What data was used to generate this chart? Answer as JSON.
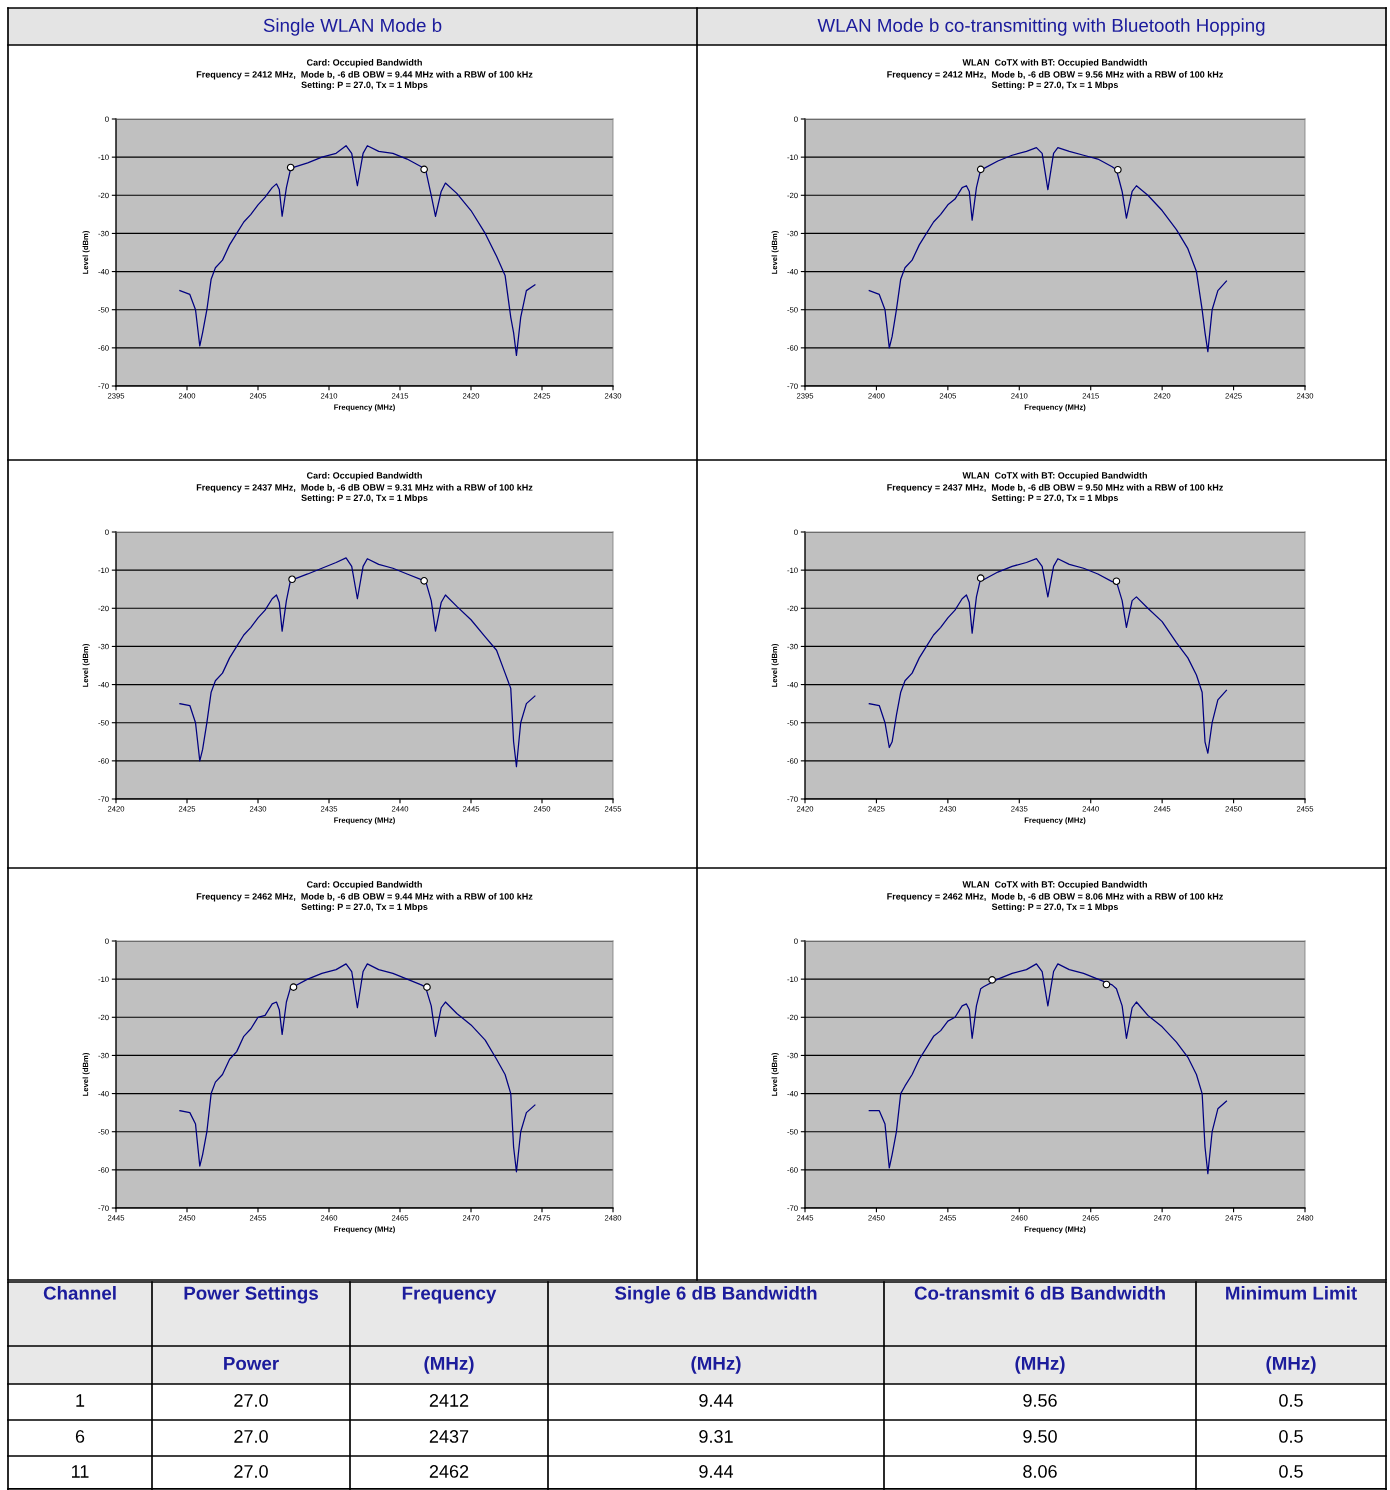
{
  "chart_data": [
    {
      "type": "line",
      "title": "Card: Occupied Bandwidth",
      "subtitle": "Frequency = 2412 MHz,  Mode b, -6 dB OBW = 9.44 MHz with a RBW of 100 kHz\nSetting: P = 27.0, Tx = 1 Mbps",
      "xlabel": "Frequency (MHz)",
      "ylabel": "Level (dBm)",
      "annotations": [
        "Single WLAN Mode b"
      ],
      "xlim": [
        2395,
        2430
      ],
      "xticks": [
        2395,
        2400,
        2405,
        2410,
        2415,
        2420,
        2425,
        2430
      ],
      "ylim": [
        -70,
        0
      ],
      "yticks": [
        -70,
        -60,
        -50,
        -40,
        -30,
        -20,
        -10,
        0
      ],
      "grid": "y",
      "series": [
        {
          "type": "line",
          "color": "#000080",
          "x": [
            2399.5,
            2400.2,
            2400.6,
            2400.9,
            2401.1,
            2401.4,
            2401.7,
            2402.0,
            2402.5,
            2403.0,
            2403.5,
            2404.0,
            2404.5,
            2405.0,
            2405.5,
            2406.0,
            2406.3,
            2406.5,
            2406.7,
            2407.0,
            2407.3,
            2407.5,
            2408.5,
            2409.5,
            2410.5,
            2411.2,
            2411.6,
            2412.0,
            2412.4,
            2412.7,
            2413.5,
            2414.5,
            2415.5,
            2416.5,
            2416.8,
            2417.2,
            2417.5,
            2417.9,
            2418.2,
            2419.0,
            2420.0,
            2421.0,
            2421.8,
            2422.4,
            2422.8,
            2423.0,
            2423.2,
            2423.5,
            2423.9,
            2424.5
          ],
          "values": [
            -45,
            -46,
            -50,
            -59.5,
            -56,
            -50,
            -42,
            -39,
            -37,
            -33,
            -30,
            -27,
            -25,
            -22.5,
            -20.5,
            -18,
            -17,
            -18.5,
            -25.5,
            -18,
            -13,
            -12.7,
            -11.5,
            -10,
            -9,
            -7,
            -9,
            -17.5,
            -9,
            -7,
            -8.5,
            -9,
            -10.5,
            -12.5,
            -13.2,
            -20,
            -25.5,
            -19,
            -16.8,
            -19.5,
            -24,
            -30,
            -36,
            -41,
            -52,
            -56,
            -62,
            -52,
            -45,
            -43.5
          ]
        },
        {
          "type": "scatter",
          "marker": "circle",
          "color": "#ffffff",
          "x": [
            2407.3,
            2416.7
          ],
          "values": [
            -12.7,
            -13.2
          ]
        }
      ]
    },
    {
      "type": "line",
      "title": "WLAN  CoTX with BT: Occupied Bandwidth",
      "subtitle": "Frequency = 2412 MHz,  Mode b, -6 dB OBW = 9.56 MHz with a RBW of 100 kHz\nSetting: P = 27.0, Tx = 1 Mbps",
      "xlabel": "Frequency (MHz)",
      "ylabel": "Level (dBm)",
      "annotations": [
        "WLAN Mode b co-transmitting with Bluetooth Hopping"
      ],
      "xlim": [
        2395,
        2430
      ],
      "xticks": [
        2395,
        2400,
        2405,
        2410,
        2415,
        2420,
        2425,
        2430
      ],
      "ylim": [
        -70,
        0
      ],
      "yticks": [
        -70,
        -60,
        -50,
        -40,
        -30,
        -20,
        -10,
        0
      ],
      "grid": "y",
      "series": [
        {
          "type": "line",
          "color": "#000080",
          "x": [
            2399.5,
            2400.2,
            2400.6,
            2400.9,
            2401.1,
            2401.4,
            2401.7,
            2402.0,
            2402.5,
            2403.0,
            2403.5,
            2404.0,
            2404.5,
            2405.0,
            2405.5,
            2406.0,
            2406.3,
            2406.5,
            2406.7,
            2407.0,
            2407.3,
            2407.5,
            2408.5,
            2409.5,
            2410.5,
            2411.2,
            2411.6,
            2412.0,
            2412.4,
            2412.7,
            2413.5,
            2414.5,
            2415.5,
            2416.5,
            2416.8,
            2417.2,
            2417.5,
            2417.9,
            2418.2,
            2419.0,
            2420.0,
            2421.0,
            2421.8,
            2422.4,
            2422.8,
            2423.0,
            2423.2,
            2423.5,
            2423.9,
            2424.5
          ],
          "values": [
            -45,
            -46,
            -50,
            -60,
            -57,
            -50,
            -42,
            -39,
            -37,
            -33,
            -30,
            -27,
            -25,
            -22.5,
            -21,
            -18,
            -17.5,
            -19,
            -26.5,
            -18,
            -13.2,
            -13,
            -11,
            -9.5,
            -8.5,
            -7.5,
            -9,
            -18.5,
            -9,
            -7.5,
            -8.5,
            -9.5,
            -10.5,
            -12.5,
            -13.3,
            -19,
            -26,
            -19,
            -17.5,
            -20,
            -24,
            -29,
            -34,
            -40,
            -50,
            -56,
            -61,
            -50,
            -45,
            -42.5
          ]
        },
        {
          "type": "scatter",
          "marker": "circle",
          "color": "#ffffff",
          "x": [
            2407.3,
            2416.9
          ],
          "values": [
            -13.2,
            -13.3
          ]
        }
      ]
    },
    {
      "type": "line",
      "title": "Card: Occupied Bandwidth",
      "subtitle": "Frequency = 2437 MHz,  Mode b, -6 dB OBW = 9.31 MHz with a RBW of 100 kHz\nSetting: P = 27.0, Tx = 1 Mbps",
      "xlabel": "Frequency (MHz)",
      "ylabel": "Level (dBm)",
      "xlim": [
        2420,
        2455
      ],
      "xticks": [
        2420,
        2425,
        2430,
        2435,
        2440,
        2445,
        2450,
        2455
      ],
      "ylim": [
        -70,
        0
      ],
      "yticks": [
        -70,
        -60,
        -50,
        -40,
        -30,
        -20,
        -10,
        0
      ],
      "grid": "y",
      "series": [
        {
          "type": "line",
          "color": "#000080",
          "x": [
            2424.5,
            2425.2,
            2425.6,
            2425.9,
            2426.1,
            2426.4,
            2426.7,
            2427.0,
            2427.5,
            2428.0,
            2428.5,
            2429.0,
            2429.5,
            2430.0,
            2430.5,
            2431.0,
            2431.3,
            2431.5,
            2431.7,
            2432.0,
            2432.3,
            2432.5,
            2433.5,
            2434.5,
            2435.5,
            2436.2,
            2436.6,
            2437.0,
            2437.4,
            2437.7,
            2438.5,
            2439.5,
            2440.5,
            2441.5,
            2441.8,
            2442.2,
            2442.5,
            2442.9,
            2443.2,
            2444.0,
            2445.0,
            2446.0,
            2446.8,
            2447.4,
            2447.8,
            2448.0,
            2448.2,
            2448.5,
            2448.9,
            2449.5
          ],
          "values": [
            -45,
            -45.5,
            -50,
            -60,
            -57,
            -50,
            -42,
            -39,
            -37,
            -33,
            -30,
            -27,
            -25,
            -22.5,
            -20.5,
            -17.5,
            -16.5,
            -18.5,
            -26,
            -18,
            -12.5,
            -12.4,
            -11,
            -9.5,
            -8,
            -6.8,
            -9,
            -17.5,
            -9,
            -7,
            -8.5,
            -9.5,
            -11,
            -12.5,
            -12.8,
            -18,
            -26,
            -18.5,
            -16.5,
            -19.5,
            -23,
            -27.5,
            -31,
            -37,
            -41,
            -55,
            -61.5,
            -50,
            -45,
            -43
          ]
        },
        {
          "type": "scatter",
          "marker": "circle",
          "color": "#ffffff",
          "x": [
            2432.4,
            2441.7
          ],
          "values": [
            -12.4,
            -12.8
          ]
        }
      ]
    },
    {
      "type": "line",
      "title": "WLAN  CoTX with BT: Occupied Bandwidth",
      "subtitle": "Frequency = 2437 MHz,  Mode b, -6 dB OBW = 9.50 MHz with a RBW of 100 kHz\nSetting: P = 27.0, Tx = 1 Mbps",
      "xlabel": "Frequency (MHz)",
      "ylabel": "Level (dBm)",
      "xlim": [
        2420,
        2455
      ],
      "xticks": [
        2420,
        2425,
        2430,
        2435,
        2440,
        2445,
        2450,
        2455
      ],
      "ylim": [
        -70,
        0
      ],
      "yticks": [
        -70,
        -60,
        -50,
        -40,
        -30,
        -20,
        -10,
        0
      ],
      "grid": "y",
      "series": [
        {
          "type": "line",
          "color": "#000080",
          "x": [
            2424.5,
            2425.2,
            2425.6,
            2425.9,
            2426.1,
            2426.4,
            2426.7,
            2427.0,
            2427.5,
            2428.0,
            2428.5,
            2429.0,
            2429.5,
            2430.0,
            2430.5,
            2431.0,
            2431.3,
            2431.5,
            2431.7,
            2432.0,
            2432.3,
            2432.5,
            2433.5,
            2434.5,
            2435.5,
            2436.2,
            2436.6,
            2437.0,
            2437.4,
            2437.7,
            2438.5,
            2439.5,
            2440.5,
            2441.5,
            2441.8,
            2442.2,
            2442.5,
            2442.9,
            2443.2,
            2444.0,
            2445.0,
            2446.0,
            2446.8,
            2447.4,
            2447.8,
            2448.0,
            2448.2,
            2448.5,
            2448.9,
            2449.5
          ],
          "values": [
            -45,
            -45.5,
            -50,
            -56.5,
            -55,
            -48,
            -42,
            -39,
            -37,
            -33,
            -30,
            -27,
            -25,
            -22.5,
            -20.5,
            -17.5,
            -16.5,
            -18.5,
            -26.5,
            -17,
            -12.1,
            -12.5,
            -10.5,
            -9,
            -8,
            -7,
            -9,
            -17,
            -9,
            -7,
            -8.5,
            -9.5,
            -11,
            -13,
            -13,
            -18,
            -25,
            -18,
            -17,
            -20,
            -23.5,
            -29,
            -33,
            -37.5,
            -42,
            -55,
            -58,
            -50,
            -44,
            -41.5
          ]
        },
        {
          "type": "scatter",
          "marker": "circle",
          "color": "#ffffff",
          "x": [
            2432.3,
            2441.8
          ],
          "values": [
            -12.1,
            -12.9
          ]
        }
      ]
    },
    {
      "type": "line",
      "title": "Card: Occupied Bandwidth",
      "subtitle": "Frequency = 2462 MHz,  Mode b, -6 dB OBW = 9.44 MHz with a RBW of 100 kHz\nSetting: P = 27.0, Tx = 1 Mbps",
      "xlabel": "Frequency (MHz)",
      "ylabel": "Level (dBm)",
      "xlim": [
        2445,
        2480
      ],
      "xticks": [
        2445,
        2450,
        2455,
        2460,
        2465,
        2470,
        2475,
        2480
      ],
      "ylim": [
        -70,
        0
      ],
      "yticks": [
        -70,
        -60,
        -50,
        -40,
        -30,
        -20,
        -10,
        0
      ],
      "grid": "y",
      "series": [
        {
          "type": "line",
          "color": "#000080",
          "x": [
            2449.5,
            2450.2,
            2450.6,
            2450.9,
            2451.1,
            2451.4,
            2451.7,
            2452.0,
            2452.5,
            2453.0,
            2453.5,
            2454.0,
            2454.5,
            2455.0,
            2455.5,
            2456.0,
            2456.3,
            2456.5,
            2456.7,
            2457.0,
            2457.3,
            2457.5,
            2458.5,
            2459.5,
            2460.5,
            2461.2,
            2461.6,
            2462.0,
            2462.4,
            2462.7,
            2463.5,
            2464.5,
            2465.5,
            2466.5,
            2466.8,
            2467.2,
            2467.5,
            2467.9,
            2468.2,
            2469.0,
            2470.0,
            2471.0,
            2471.8,
            2472.4,
            2472.8,
            2473.0,
            2473.2,
            2473.5,
            2473.9,
            2474.5
          ],
          "values": [
            -44.5,
            -45,
            -48,
            -59,
            -56,
            -50,
            -40,
            -37,
            -35,
            -31,
            -29,
            -25,
            -23,
            -20,
            -19.5,
            -16.5,
            -16,
            -18,
            -24.5,
            -16,
            -12.1,
            -12,
            -10,
            -8.5,
            -7.5,
            -6,
            -8,
            -17.5,
            -8,
            -6,
            -7.5,
            -8.5,
            -10,
            -11.5,
            -12.1,
            -17,
            -25,
            -17.5,
            -16,
            -19,
            -22,
            -26,
            -31,
            -35,
            -40,
            -54,
            -60.5,
            -50,
            -45,
            -43
          ]
        },
        {
          "type": "scatter",
          "marker": "circle",
          "color": "#ffffff",
          "x": [
            2457.5,
            2466.9
          ],
          "values": [
            -12.1,
            -12.1
          ]
        }
      ]
    },
    {
      "type": "line",
      "title": "WLAN  CoTX with BT: Occupied Bandwidth",
      "subtitle": "Frequency = 2462 MHz,  Mode b, -6 dB OBW = 8.06 MHz with a RBW of 100 kHz\nSetting: P = 27.0, Tx = 1 Mbps",
      "xlabel": "Frequency (MHz)",
      "ylabel": "Level (dBm)",
      "xlim": [
        2445,
        2480
      ],
      "xticks": [
        2445,
        2450,
        2455,
        2460,
        2465,
        2470,
        2475,
        2480
      ],
      "ylim": [
        -70,
        0
      ],
      "yticks": [
        -70,
        -60,
        -50,
        -40,
        -30,
        -20,
        -10,
        0
      ],
      "grid": "y",
      "series": [
        {
          "type": "line",
          "color": "#000080",
          "x": [
            2449.5,
            2450.2,
            2450.6,
            2450.9,
            2451.1,
            2451.4,
            2451.7,
            2452.0,
            2452.5,
            2453.0,
            2453.5,
            2454.0,
            2454.5,
            2455.0,
            2455.5,
            2456.0,
            2456.3,
            2456.5,
            2456.7,
            2457.0,
            2457.3,
            2457.5,
            2458.5,
            2459.5,
            2460.5,
            2461.2,
            2461.6,
            2462.0,
            2462.4,
            2462.7,
            2463.5,
            2464.5,
            2465.5,
            2466.5,
            2466.8,
            2467.2,
            2467.5,
            2467.9,
            2468.2,
            2469.0,
            2470.0,
            2471.0,
            2471.8,
            2472.4,
            2472.8,
            2473.0,
            2473.2,
            2473.5,
            2473.9,
            2474.5
          ],
          "values": [
            -44.5,
            -44.5,
            -48,
            -59.5,
            -56,
            -50,
            -40,
            -38,
            -35,
            -31,
            -28,
            -25,
            -23.5,
            -21,
            -20,
            -17,
            -16.5,
            -18,
            -25.5,
            -17,
            -12.5,
            -12,
            -10,
            -8.5,
            -7.5,
            -6,
            -8,
            -17,
            -8,
            -6,
            -7.5,
            -8.5,
            -10,
            -11.5,
            -12.5,
            -17,
            -25.5,
            -17.5,
            -16,
            -19.5,
            -22.5,
            -26.5,
            -30.5,
            -35,
            -40,
            -54,
            -61,
            -50,
            -44,
            -42
          ]
        },
        {
          "type": "scatter",
          "marker": "circle",
          "color": "#ffffff",
          "x": [
            2458.1,
            2466.1
          ],
          "values": [
            -10.2,
            -11.4
          ]
        }
      ]
    },
    {
      "type": "other",
      "annotations": [
        "Channel",
        "Power Settings",
        "Frequency",
        "Single 6 dB Bandwidth",
        "Co-transmit 6 dB Bandwidth",
        "Minimum Limit",
        null,
        "Power",
        "(MHz)",
        "(MHz)",
        "(MHz)",
        "(MHz)",
        "1",
        "27.0",
        "2412",
        "9.44",
        "9.56",
        "0.5",
        "6",
        "27.0",
        "2437",
        "9.31",
        "9.50",
        "0.5",
        "11",
        "27.0",
        "2462",
        "9.44",
        "8.06",
        "0.5"
      ]
    }
  ]
}
